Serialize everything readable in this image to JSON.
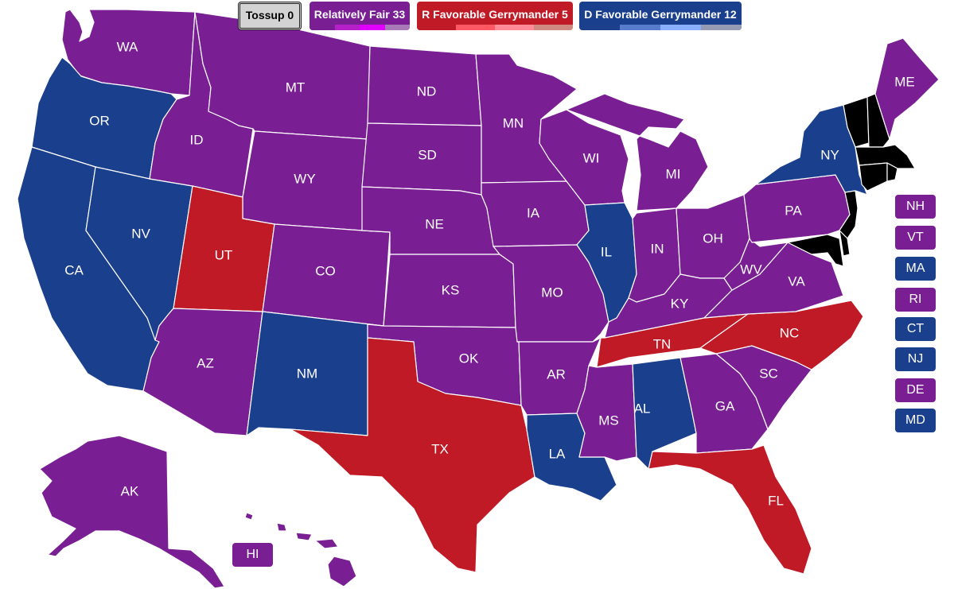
{
  "colors": {
    "fair": "#7a1f93",
    "r_gerry": "#c01a26",
    "d_gerry": "#1a408d",
    "tossup": "#d3d3d3"
  },
  "legend": {
    "tossup": "Tossup 0",
    "fair": "Relatively Fair 33",
    "r": "R Favorable Gerrymander 5",
    "d": "D Favorable Gerrymander 12",
    "fair_shades": [
      "#7a1f93",
      "#b620c9",
      "#e000ff",
      "#a87bb8"
    ],
    "r_shades": [
      "#c01a26",
      "#ff5865",
      "#ff8b98",
      "#cf8980"
    ],
    "d_shades": [
      "#1c408c",
      "#577ccc",
      "#8aafff",
      "#949bb3"
    ]
  },
  "states": {
    "WA": {
      "label": "WA",
      "cat": "fair"
    },
    "OR": {
      "label": "OR",
      "cat": "d_gerry"
    },
    "CA": {
      "label": "CA",
      "cat": "d_gerry"
    },
    "NV": {
      "label": "NV",
      "cat": "d_gerry"
    },
    "ID": {
      "label": "ID",
      "cat": "fair"
    },
    "MT": {
      "label": "MT",
      "cat": "fair"
    },
    "WY": {
      "label": "WY",
      "cat": "fair"
    },
    "UT": {
      "label": "UT",
      "cat": "r_gerry"
    },
    "AZ": {
      "label": "AZ",
      "cat": "fair"
    },
    "CO": {
      "label": "CO",
      "cat": "fair"
    },
    "NM": {
      "label": "NM",
      "cat": "d_gerry"
    },
    "ND": {
      "label": "ND",
      "cat": "fair"
    },
    "SD": {
      "label": "SD",
      "cat": "fair"
    },
    "NE": {
      "label": "NE",
      "cat": "fair"
    },
    "KS": {
      "label": "KS",
      "cat": "fair"
    },
    "OK": {
      "label": "OK",
      "cat": "fair"
    },
    "TX": {
      "label": "TX",
      "cat": "r_gerry"
    },
    "MN": {
      "label": "MN",
      "cat": "fair"
    },
    "IA": {
      "label": "IA",
      "cat": "fair"
    },
    "MO": {
      "label": "MO",
      "cat": "fair"
    },
    "AR": {
      "label": "AR",
      "cat": "fair"
    },
    "LA": {
      "label": "LA",
      "cat": "d_gerry"
    },
    "WI": {
      "label": "WI",
      "cat": "fair"
    },
    "IL": {
      "label": "IL",
      "cat": "d_gerry"
    },
    "MI": {
      "label": "MI",
      "cat": "fair"
    },
    "IN": {
      "label": "IN",
      "cat": "fair"
    },
    "OH": {
      "label": "OH",
      "cat": "fair"
    },
    "KY": {
      "label": "KY",
      "cat": "fair"
    },
    "TN": {
      "label": "TN",
      "cat": "r_gerry"
    },
    "MS": {
      "label": "MS",
      "cat": "fair"
    },
    "AL": {
      "label": "AL",
      "cat": "d_gerry"
    },
    "GA": {
      "label": "GA",
      "cat": "fair"
    },
    "FL": {
      "label": "FL",
      "cat": "r_gerry"
    },
    "SC": {
      "label": "SC",
      "cat": "fair"
    },
    "NC": {
      "label": "NC",
      "cat": "r_gerry"
    },
    "VA": {
      "label": "VA",
      "cat": "fair"
    },
    "WV": {
      "label": "WV",
      "cat": "fair"
    },
    "PA": {
      "label": "PA",
      "cat": "fair"
    },
    "NY": {
      "label": "NY",
      "cat": "d_gerry"
    },
    "ME": {
      "label": "ME",
      "cat": "fair"
    },
    "AK": {
      "label": "AK",
      "cat": "fair"
    }
  },
  "small_states": [
    {
      "label": "NH",
      "cat": "fair"
    },
    {
      "label": "VT",
      "cat": "fair"
    },
    {
      "label": "MA",
      "cat": "d_gerry"
    },
    {
      "label": "RI",
      "cat": "fair"
    },
    {
      "label": "CT",
      "cat": "d_gerry"
    },
    {
      "label": "NJ",
      "cat": "d_gerry"
    },
    {
      "label": "DE",
      "cat": "fair"
    },
    {
      "label": "MD",
      "cat": "d_gerry"
    }
  ],
  "hawaii": {
    "label": "HI",
    "cat": "fair"
  }
}
